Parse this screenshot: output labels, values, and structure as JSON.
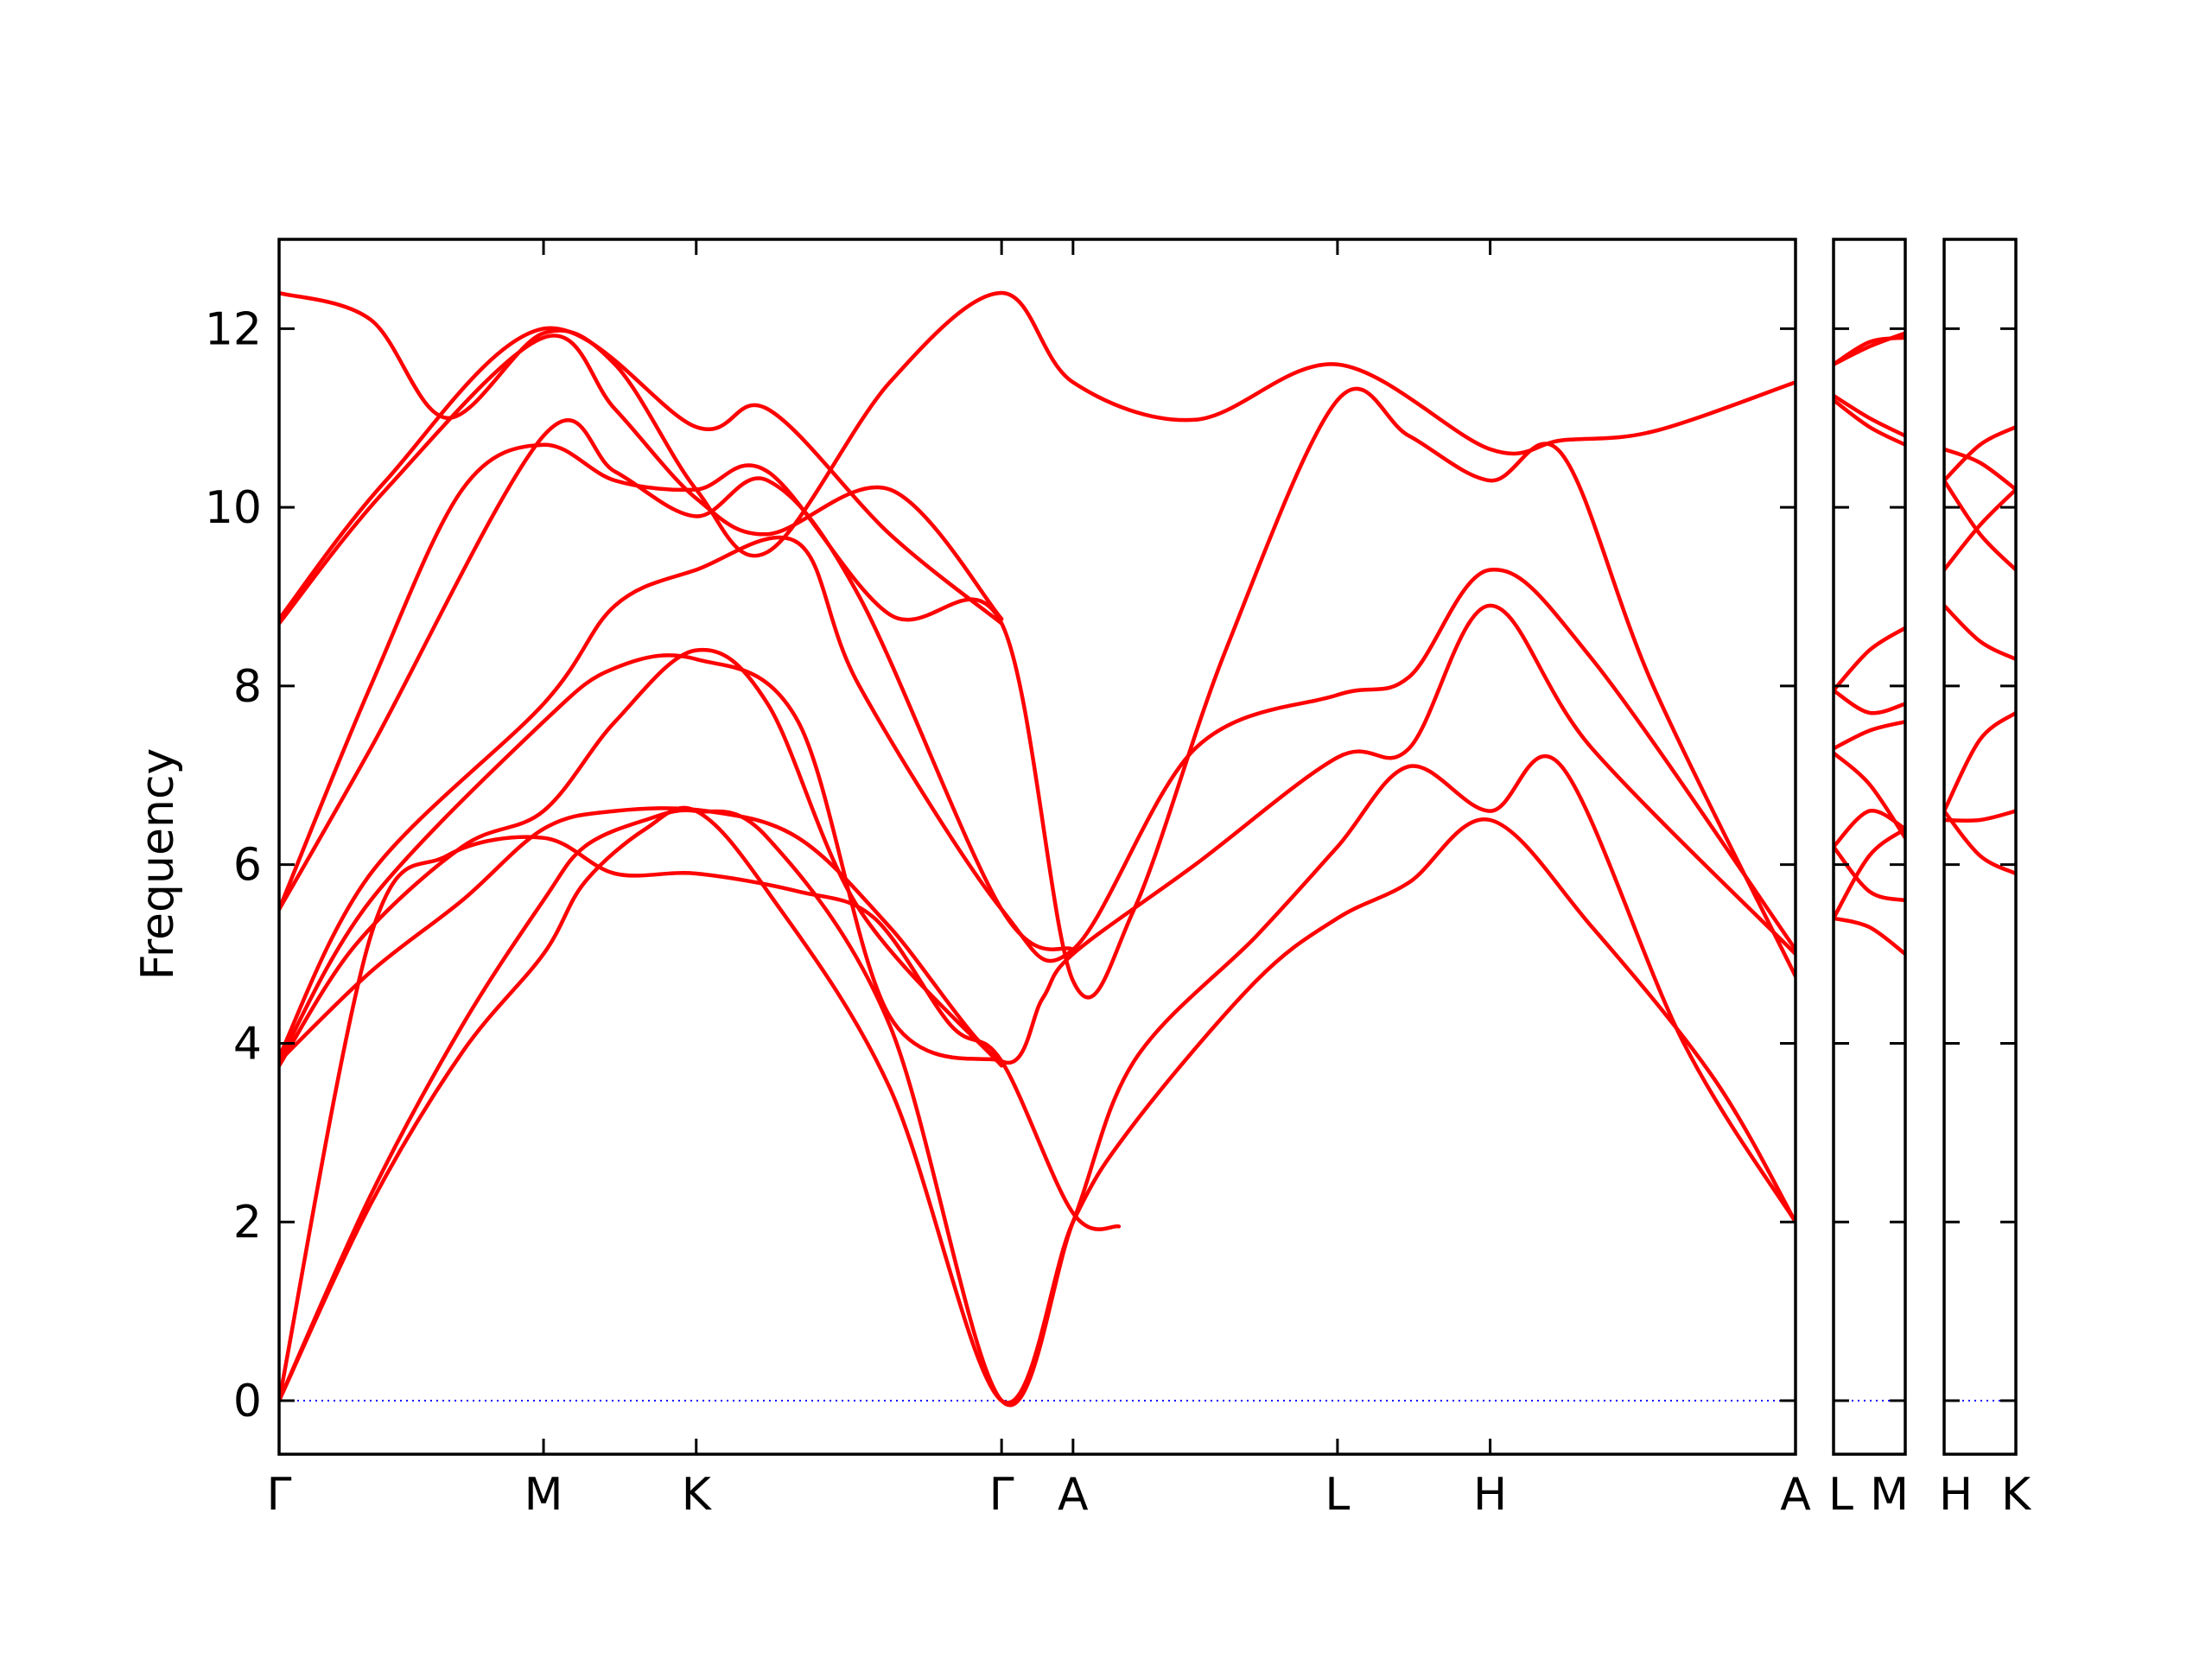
{
  "chart_data": {
    "type": "line",
    "ylabel": "Frequency",
    "ylim": [
      -0.6,
      13.0
    ],
    "yticks": [
      0,
      2,
      4,
      6,
      8,
      10,
      12
    ],
    "band_color": "#ff0000",
    "zero_line_color": "#0000ff",
    "grid": false,
    "panels": [
      {
        "path_labels": [
          "Γ",
          "M",
          "K",
          "Γ",
          "A",
          "L",
          "H",
          "A"
        ],
        "path_positions": [
          0,
          0.866,
          1.366,
          2.366,
          2.6,
          3.466,
          3.966,
          4.966
        ],
        "bands": [
          [
            [
              0,
              0
            ],
            [
              0.3,
              2.2
            ],
            [
              0.6,
              3.9
            ],
            [
              0.866,
              5.0
            ],
            [
              1.0,
              5.8
            ],
            [
              1.2,
              6.4
            ],
            [
              1.366,
              6.6
            ],
            [
              1.6,
              5.7
            ],
            [
              2.0,
              3.5
            ],
            [
              2.366,
              0
            ],
            [
              2.6,
              2.0
            ],
            [
              2.8,
              3.1
            ],
            [
              3.2,
              4.7
            ],
            [
              3.466,
              5.4
            ],
            [
              3.7,
              5.8
            ],
            [
              3.966,
              6.5
            ],
            [
              4.3,
              5.3
            ],
            [
              4.7,
              3.6
            ],
            [
              4.966,
              2.0
            ]
          ],
          [
            [
              0,
              0
            ],
            [
              0.3,
              2.3
            ],
            [
              0.6,
              4.2
            ],
            [
              0.866,
              5.6
            ],
            [
              1.0,
              6.2
            ],
            [
              1.2,
              6.5
            ],
            [
              1.366,
              6.6
            ],
            [
              1.6,
              6.3
            ],
            [
              2.0,
              4.2
            ],
            [
              2.366,
              0
            ],
            [
              2.6,
              2.0
            ],
            [
              2.8,
              3.8
            ],
            [
              3.2,
              5.2
            ],
            [
              3.466,
              6.2
            ],
            [
              3.7,
              7.1
            ],
            [
              3.966,
              6.6
            ],
            [
              4.2,
              7.1
            ],
            [
              4.6,
              4.0
            ],
            [
              4.966,
              2.0
            ]
          ],
          [
            [
              0,
              0
            ],
            [
              0.3,
              5.2
            ],
            [
              0.55,
              6.1
            ],
            [
              0.866,
              6.3
            ],
            [
              1.1,
              5.9
            ],
            [
              1.366,
              5.9
            ],
            [
              1.7,
              5.7
            ],
            [
              1.95,
              5.4
            ],
            [
              2.2,
              4.2
            ],
            [
              2.366,
              3.8
            ],
            [
              2.6,
              2.1
            ],
            [
              2.75,
              1.95
            ]
          ],
          [
            [
              0,
              3.8
            ],
            [
              0.3,
              4.8
            ],
            [
              0.6,
              5.6
            ],
            [
              0.866,
              6.4
            ],
            [
              1.1,
              6.6
            ],
            [
              1.4,
              6.6
            ],
            [
              1.7,
              6.3
            ],
            [
              2.0,
              5.3
            ],
            [
              2.366,
              3.8
            ],
            [
              2.5,
              4.5
            ],
            [
              2.6,
              5.0
            ],
            [
              3.0,
              6.0
            ],
            [
              3.466,
              7.2
            ],
            [
              3.7,
              7.3
            ],
            [
              3.966,
              8.9
            ],
            [
              4.3,
              7.3
            ],
            [
              4.966,
              5.0
            ]
          ],
          [
            [
              0,
              3.75
            ],
            [
              0.25,
              5.1
            ],
            [
              0.6,
              6.2
            ],
            [
              0.866,
              6.6
            ],
            [
              1.1,
              7.6
            ],
            [
              1.366,
              8.4
            ],
            [
              1.6,
              7.8
            ],
            [
              1.9,
              5.5
            ],
            [
              2.366,
              3.75
            ]
          ],
          [
            [
              0,
              3.8
            ],
            [
              0.3,
              5.6
            ],
            [
              0.866,
              7.6
            ],
            [
              1.1,
              8.2
            ],
            [
              1.366,
              8.3
            ],
            [
              1.7,
              7.6
            ],
            [
              2.0,
              4.3
            ],
            [
              2.366,
              3.8
            ]
          ],
          [
            [
              0,
              3.85
            ],
            [
              0.3,
              5.9
            ],
            [
              0.866,
              7.8
            ],
            [
              1.1,
              8.9
            ],
            [
              1.366,
              9.3
            ],
            [
              1.7,
              9.6
            ],
            [
              1.9,
              8.0
            ],
            [
              2.366,
              5.5
            ],
            [
              2.6,
              5.05
            ],
            [
              3.0,
              7.3
            ],
            [
              3.466,
              7.9
            ],
            [
              3.7,
              8.1
            ],
            [
              3.966,
              9.3
            ],
            [
              4.3,
              8.3
            ],
            [
              4.966,
              5.05
            ]
          ],
          [
            [
              0,
              5.5
            ],
            [
              0.3,
              7.3
            ],
            [
              0.866,
              10.8
            ],
            [
              1.1,
              10.4
            ],
            [
              1.366,
              9.9
            ],
            [
              1.6,
              10.3
            ],
            [
              1.9,
              9.0
            ],
            [
              2.366,
              5.5
            ],
            [
              2.6,
              5.05
            ]
          ],
          [
            [
              0,
              5.5
            ],
            [
              0.3,
              8.0
            ],
            [
              0.6,
              10.2
            ],
            [
              0.866,
              10.7
            ],
            [
              1.1,
              10.3
            ],
            [
              1.366,
              10.2
            ],
            [
              1.6,
              10.4
            ],
            [
              2.0,
              8.8
            ],
            [
              2.366,
              8.7
            ],
            [
              2.6,
              4.7
            ],
            [
              2.8,
              5.5
            ],
            [
              3.1,
              8.4
            ],
            [
              3.466,
              11.2
            ],
            [
              3.7,
              10.8
            ],
            [
              3.966,
              10.3
            ],
            [
              4.2,
              10.6
            ],
            [
              4.5,
              8.0
            ],
            [
              4.966,
              4.75
            ]
          ],
          [
            [
              0,
              8.7
            ],
            [
              0.35,
              10.2
            ],
            [
              0.866,
              11.9
            ],
            [
              1.1,
              11.1
            ],
            [
              1.366,
              10.1
            ],
            [
              1.6,
              9.7
            ],
            [
              2.0,
              10.2
            ],
            [
              2.366,
              8.75
            ]
          ],
          [
            [
              0,
              8.75
            ],
            [
              0.35,
              10.3
            ],
            [
              0.866,
              12.0
            ],
            [
              1.366,
              10.9
            ],
            [
              1.6,
              11.1
            ],
            [
              2.0,
              9.7
            ],
            [
              2.366,
              8.7
            ]
          ],
          [
            [
              0,
              12.4
            ],
            [
              0.3,
              12.1
            ],
            [
              0.55,
              11.0
            ],
            [
              0.866,
              11.95
            ],
            [
              1.1,
              11.6
            ],
            [
              1.366,
              10.2
            ],
            [
              1.6,
              9.5
            ],
            [
              2.0,
              11.4
            ],
            [
              2.366,
              12.4
            ],
            [
              2.6,
              11.4
            ],
            [
              3.0,
              10.98
            ],
            [
              3.466,
              11.6
            ],
            [
              3.966,
              10.65
            ],
            [
              4.2,
              10.75
            ],
            [
              4.5,
              10.85
            ],
            [
              4.966,
              11.4
            ]
          ]
        ]
      },
      {
        "path_labels": [
          "L",
          "M"
        ],
        "path_positions": [
          0,
          1
        ],
        "bands": [
          [
            [
              0,
              5.4
            ],
            [
              0.5,
              5.3
            ],
            [
              1,
              5.0
            ]
          ],
          [
            [
              0,
              5.4
            ],
            [
              0.5,
              6.1
            ],
            [
              1,
              6.4
            ]
          ],
          [
            [
              0,
              6.2
            ],
            [
              0.5,
              5.7
            ],
            [
              1,
              5.6
            ]
          ],
          [
            [
              0,
              6.2
            ],
            [
              0.5,
              6.6
            ],
            [
              1,
              6.4
            ]
          ],
          [
            [
              0,
              7.25
            ],
            [
              0.5,
              6.9
            ],
            [
              1,
              6.3
            ]
          ],
          [
            [
              0,
              7.3
            ],
            [
              0.5,
              7.5
            ],
            [
              1,
              7.6
            ]
          ],
          [
            [
              0,
              7.95
            ],
            [
              0.5,
              7.7
            ],
            [
              1,
              7.8
            ]
          ],
          [
            [
              0,
              7.95
            ],
            [
              0.5,
              8.4
            ],
            [
              1,
              8.65
            ]
          ],
          [
            [
              0,
              11.2
            ],
            [
              0.5,
              10.9
            ],
            [
              1,
              10.7
            ]
          ],
          [
            [
              0,
              11.25
            ],
            [
              0.5,
              11.0
            ],
            [
              1,
              10.8
            ]
          ],
          [
            [
              0,
              11.6
            ],
            [
              0.5,
              11.85
            ],
            [
              1,
              11.9
            ]
          ],
          [
            [
              0,
              11.6
            ],
            [
              0.5,
              11.8
            ],
            [
              1,
              11.95
            ]
          ]
        ]
      },
      {
        "path_labels": [
          "H",
          "K"
        ],
        "path_positions": [
          0,
          1
        ],
        "bands": [
          [
            [
              0,
              6.5
            ],
            [
              0.5,
              6.5
            ],
            [
              1,
              6.6
            ]
          ],
          [
            [
              0,
              6.6
            ],
            [
              0.5,
              6.1
            ],
            [
              1,
              5.9
            ]
          ],
          [
            [
              0,
              6.6
            ],
            [
              0.5,
              7.4
            ],
            [
              1,
              7.7
            ]
          ],
          [
            [
              0,
              8.9
            ],
            [
              0.5,
              8.5
            ],
            [
              1,
              8.3
            ]
          ],
          [
            [
              0,
              9.3
            ],
            [
              0.5,
              9.8
            ],
            [
              1,
              10.2
            ]
          ],
          [
            [
              0,
              10.3
            ],
            [
              0.5,
              9.7
            ],
            [
              1,
              9.3
            ]
          ],
          [
            [
              0,
              10.3
            ],
            [
              0.5,
              10.7
            ],
            [
              1,
              10.9
            ]
          ],
          [
            [
              0,
              10.65
            ],
            [
              0.5,
              10.5
            ],
            [
              1,
              10.2
            ]
          ]
        ]
      }
    ]
  }
}
